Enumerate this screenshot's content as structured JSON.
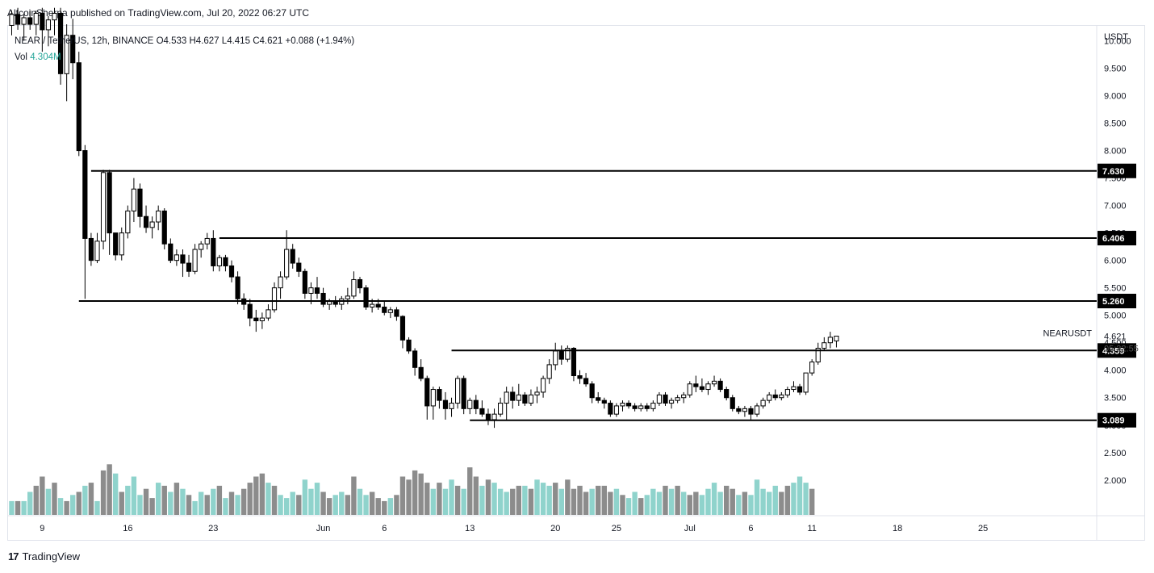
{
  "header": {
    "publish_line": "AltcoinSherpa published on TradingView.com, Jul 20, 2022 06:27 UTC"
  },
  "legend": {
    "symbol": "NEAR / TetherUS, 12h, BINANCE",
    "open": "O4.533",
    "high": "H4.627",
    "low": "L4.415",
    "close": "C4.621",
    "change": "+0.088 (+1.94%)",
    "vol_label": "Vol",
    "vol_value": "4.304M"
  },
  "footer": {
    "brand": "TradingView",
    "logo_text": "17"
  },
  "colors": {
    "up_candle": "#ffffff",
    "down_candle": "#000000",
    "candle_outline": "#000000",
    "vol_up": "#8fd3cc",
    "vol_down": "#8c8c8c",
    "level_line": "#000000",
    "price_label_bg": "#000000"
  },
  "chart_data": {
    "type": "candlestick",
    "symbol": "NEARUSDT",
    "interval": "12h",
    "currency": "USDT",
    "ylim": [
      1.6,
      10.6
    ],
    "y_ticks": [
      10.0,
      9.5,
      9.0,
      8.5,
      8.0,
      7.5,
      7.0,
      6.5,
      6.0,
      5.5,
      5.0,
      4.5,
      4.0,
      3.5,
      3.0,
      2.5,
      2.0
    ],
    "y_tick_labels": [
      "10.000",
      "9.500",
      "9.000",
      "8.500",
      "8.000",
      "7.500",
      "7.000",
      "6.500",
      "6.000",
      "5.500",
      "5.000",
      "4.500",
      "4.000",
      "3.500",
      "3.000",
      "2.500",
      "2.000"
    ],
    "x_ticks": [
      {
        "label": "9",
        "bar": 5
      },
      {
        "label": "16",
        "bar": 19
      },
      {
        "label": "23",
        "bar": 33
      },
      {
        "label": "Jun",
        "bar": 51
      },
      {
        "label": "6",
        "bar": 61
      },
      {
        "label": "13",
        "bar": 75
      },
      {
        "label": "20",
        "bar": 89
      },
      {
        "label": "25",
        "bar": 99
      },
      {
        "label": "Jul",
        "bar": 111
      },
      {
        "label": "6",
        "bar": 121
      },
      {
        "label": "11",
        "bar": 131
      },
      {
        "label": "18",
        "bar": 145
      },
      {
        "label": "25",
        "bar": 159
      }
    ],
    "horizontal_levels": [
      {
        "value": 7.63,
        "label": "7.630",
        "from_bar": 13
      },
      {
        "value": 6.406,
        "label": "6.406",
        "from_bar": 34
      },
      {
        "value": 5.26,
        "label": "5.260",
        "from_bar": 11
      },
      {
        "value": 4.359,
        "label": "4.359",
        "from_bar": 72
      },
      {
        "value": 3.089,
        "label": "3.089",
        "from_bar": 75
      }
    ],
    "last_price": {
      "value": 4.621,
      "label": "4.621",
      "countdown": "05:32:55",
      "series_name": "NEARUSDT"
    },
    "candles": [
      [
        10.28,
        10.55,
        10.1,
        10.48
      ],
      [
        10.48,
        10.6,
        10.2,
        10.3
      ],
      [
        10.3,
        10.5,
        10.0,
        10.42
      ],
      [
        10.42,
        10.55,
        10.2,
        10.3
      ],
      [
        10.3,
        10.55,
        10.1,
        10.5
      ],
      [
        10.5,
        10.6,
        9.8,
        10.2
      ],
      [
        10.2,
        10.45,
        9.9,
        10.38
      ],
      [
        10.38,
        10.6,
        10.1,
        10.5
      ],
      [
        10.5,
        10.6,
        9.2,
        9.4
      ],
      [
        9.4,
        10.3,
        8.9,
        10.1
      ],
      [
        10.1,
        10.4,
        9.3,
        9.6
      ],
      [
        9.6,
        9.8,
        7.9,
        8.0
      ],
      [
        8.0,
        8.1,
        5.3,
        6.4
      ],
      [
        6.4,
        6.5,
        5.9,
        6.0
      ],
      [
        6.0,
        6.5,
        5.95,
        6.35
      ],
      [
        6.35,
        7.65,
        6.2,
        7.6
      ],
      [
        7.6,
        7.65,
        6.1,
        6.5
      ],
      [
        6.5,
        6.5,
        6.0,
        6.1
      ],
      [
        6.1,
        6.6,
        6.0,
        6.5
      ],
      [
        6.5,
        7.0,
        6.4,
        6.9
      ],
      [
        6.9,
        7.5,
        6.7,
        7.3
      ],
      [
        7.3,
        7.4,
        6.6,
        6.8
      ],
      [
        6.8,
        7.0,
        6.5,
        6.6
      ],
      [
        6.6,
        6.8,
        6.4,
        6.7
      ],
      [
        6.7,
        7.0,
        6.55,
        6.9
      ],
      [
        6.9,
        6.95,
        6.2,
        6.3
      ],
      [
        6.3,
        6.4,
        5.95,
        6.0
      ],
      [
        6.0,
        6.2,
        5.9,
        6.1
      ],
      [
        6.1,
        6.2,
        5.7,
        5.95
      ],
      [
        5.95,
        6.1,
        5.7,
        5.8
      ],
      [
        5.8,
        6.3,
        5.75,
        6.2
      ],
      [
        6.2,
        6.35,
        6.05,
        6.3
      ],
      [
        6.3,
        6.5,
        6.2,
        6.4
      ],
      [
        6.4,
        6.55,
        5.8,
        5.9
      ],
      [
        5.9,
        6.1,
        5.8,
        6.05
      ],
      [
        6.05,
        6.1,
        5.8,
        5.9
      ],
      [
        5.9,
        6.0,
        5.6,
        5.7
      ],
      [
        5.7,
        5.8,
        5.2,
        5.3
      ],
      [
        5.3,
        5.4,
        5.1,
        5.2
      ],
      [
        5.2,
        5.3,
        4.8,
        4.95
      ],
      [
        4.95,
        5.1,
        4.7,
        4.9
      ],
      [
        4.9,
        5.05,
        4.75,
        4.95
      ],
      [
        4.95,
        5.2,
        4.9,
        5.1
      ],
      [
        5.1,
        5.6,
        5.05,
        5.5
      ],
      [
        5.5,
        5.8,
        5.3,
        5.7
      ],
      [
        5.7,
        6.55,
        5.65,
        6.2
      ],
      [
        6.2,
        6.3,
        5.85,
        5.95
      ],
      [
        5.95,
        6.05,
        5.7,
        5.8
      ],
      [
        5.8,
        5.85,
        5.3,
        5.4
      ],
      [
        5.4,
        5.6,
        5.2,
        5.5
      ],
      [
        5.5,
        5.7,
        5.3,
        5.4
      ],
      [
        5.4,
        5.5,
        5.15,
        5.2
      ],
      [
        5.2,
        5.3,
        5.1,
        5.25
      ],
      [
        5.25,
        5.35,
        5.15,
        5.2
      ],
      [
        5.2,
        5.35,
        5.1,
        5.3
      ],
      [
        5.3,
        5.5,
        5.2,
        5.35
      ],
      [
        5.35,
        5.8,
        5.3,
        5.65
      ],
      [
        5.65,
        5.7,
        5.4,
        5.5
      ],
      [
        5.5,
        5.55,
        5.1,
        5.15
      ],
      [
        5.15,
        5.3,
        5.05,
        5.2
      ],
      [
        5.2,
        5.3,
        5.1,
        5.15
      ],
      [
        5.15,
        5.25,
        5.0,
        5.05
      ],
      [
        5.05,
        5.15,
        4.95,
        5.1
      ],
      [
        5.1,
        5.15,
        4.9,
        4.98
      ],
      [
        4.98,
        5.0,
        4.4,
        4.55
      ],
      [
        4.55,
        4.6,
        4.3,
        4.35
      ],
      [
        4.35,
        4.4,
        3.9,
        4.05
      ],
      [
        4.05,
        4.2,
        3.8,
        3.85
      ],
      [
        3.85,
        3.9,
        3.1,
        3.35
      ],
      [
        3.35,
        3.7,
        3.1,
        3.65
      ],
      [
        3.65,
        3.7,
        3.3,
        3.45
      ],
      [
        3.45,
        3.6,
        3.1,
        3.3
      ],
      [
        3.3,
        3.5,
        3.15,
        3.4
      ],
      [
        3.4,
        3.9,
        3.3,
        3.85
      ],
      [
        3.85,
        3.9,
        3.2,
        3.3
      ],
      [
        3.3,
        3.5,
        3.2,
        3.45
      ],
      [
        3.45,
        3.55,
        3.2,
        3.3
      ],
      [
        3.3,
        3.45,
        3.15,
        3.2
      ],
      [
        3.2,
        3.3,
        3.0,
        3.1
      ],
      [
        3.1,
        3.3,
        2.95,
        3.2
      ],
      [
        3.2,
        3.5,
        3.15,
        3.4
      ],
      [
        3.4,
        3.7,
        3.1,
        3.6
      ],
      [
        3.6,
        3.7,
        3.3,
        3.45
      ],
      [
        3.45,
        3.75,
        3.35,
        3.55
      ],
      [
        3.55,
        3.6,
        3.35,
        3.4
      ],
      [
        3.4,
        3.65,
        3.35,
        3.55
      ],
      [
        3.55,
        3.7,
        3.4,
        3.6
      ],
      [
        3.6,
        3.9,
        3.5,
        3.85
      ],
      [
        3.85,
        4.2,
        3.75,
        4.1
      ],
      [
        4.1,
        4.5,
        4.0,
        4.35
      ],
      [
        4.35,
        4.45,
        4.1,
        4.2
      ],
      [
        4.2,
        4.45,
        4.15,
        4.4
      ],
      [
        4.4,
        4.42,
        3.8,
        3.9
      ],
      [
        3.9,
        4.0,
        3.75,
        3.85
      ],
      [
        3.85,
        3.95,
        3.7,
        3.75
      ],
      [
        3.75,
        3.8,
        3.4,
        3.5
      ],
      [
        3.5,
        3.6,
        3.4,
        3.45
      ],
      [
        3.45,
        3.5,
        3.3,
        3.4
      ],
      [
        3.4,
        3.45,
        3.15,
        3.2
      ],
      [
        3.2,
        3.4,
        3.15,
        3.35
      ],
      [
        3.35,
        3.45,
        3.25,
        3.4
      ],
      [
        3.4,
        3.45,
        3.3,
        3.35
      ],
      [
        3.35,
        3.4,
        3.25,
        3.3
      ],
      [
        3.3,
        3.4,
        3.25,
        3.35
      ],
      [
        3.35,
        3.4,
        3.25,
        3.3
      ],
      [
        3.3,
        3.45,
        3.25,
        3.4
      ],
      [
        3.4,
        3.6,
        3.35,
        3.55
      ],
      [
        3.55,
        3.6,
        3.35,
        3.4
      ],
      [
        3.4,
        3.5,
        3.3,
        3.45
      ],
      [
        3.45,
        3.55,
        3.4,
        3.5
      ],
      [
        3.5,
        3.6,
        3.4,
        3.55
      ],
      [
        3.55,
        3.8,
        3.5,
        3.75
      ],
      [
        3.75,
        3.9,
        3.6,
        3.7
      ],
      [
        3.7,
        3.85,
        3.6,
        3.65
      ],
      [
        3.65,
        3.8,
        3.55,
        3.75
      ],
      [
        3.75,
        3.9,
        3.7,
        3.8
      ],
      [
        3.8,
        3.85,
        3.6,
        3.65
      ],
      [
        3.65,
        3.7,
        3.45,
        3.5
      ],
      [
        3.5,
        3.55,
        3.25,
        3.3
      ],
      [
        3.3,
        3.35,
        3.2,
        3.25
      ],
      [
        3.25,
        3.35,
        3.15,
        3.3
      ],
      [
        3.3,
        3.35,
        3.1,
        3.2
      ],
      [
        3.2,
        3.4,
        3.15,
        3.35
      ],
      [
        3.35,
        3.5,
        3.3,
        3.45
      ],
      [
        3.45,
        3.6,
        3.4,
        3.55
      ],
      [
        3.55,
        3.65,
        3.45,
        3.5
      ],
      [
        3.5,
        3.6,
        3.45,
        3.55
      ],
      [
        3.55,
        3.7,
        3.5,
        3.65
      ],
      [
        3.65,
        3.8,
        3.6,
        3.7
      ],
      [
        3.7,
        3.75,
        3.55,
        3.6
      ],
      [
        3.6,
        3.9,
        3.55,
        3.95
      ],
      [
        3.95,
        4.2,
        3.9,
        4.15
      ],
      [
        4.15,
        4.5,
        4.1,
        4.4
      ],
      [
        4.4,
        4.6,
        4.35,
        4.5
      ],
      [
        4.5,
        4.7,
        4.4,
        4.6
      ],
      [
        4.533,
        4.627,
        4.415,
        4.621
      ]
    ],
    "volumes": [
      [
        2.0,
        1
      ],
      [
        2.0,
        0
      ],
      [
        2.0,
        1
      ],
      [
        2.3,
        1
      ],
      [
        2.5,
        0
      ],
      [
        2.8,
        0
      ],
      [
        2.4,
        1
      ],
      [
        2.6,
        0
      ],
      [
        2.1,
        1
      ],
      [
        2.0,
        0
      ],
      [
        2.2,
        1
      ],
      [
        2.3,
        0
      ],
      [
        2.5,
        1
      ],
      [
        2.6,
        0
      ],
      [
        2.0,
        1
      ],
      [
        3.0,
        0
      ],
      [
        3.2,
        0
      ],
      [
        2.9,
        1
      ],
      [
        2.3,
        0
      ],
      [
        2.5,
        1
      ],
      [
        2.8,
        1
      ],
      [
        2.2,
        1
      ],
      [
        2.4,
        0
      ],
      [
        2.1,
        0
      ],
      [
        2.6,
        1
      ],
      [
        2.5,
        0
      ],
      [
        2.3,
        1
      ],
      [
        2.6,
        0
      ],
      [
        2.4,
        1
      ],
      [
        2.2,
        0
      ],
      [
        2.0,
        1
      ],
      [
        2.3,
        1
      ],
      [
        2.2,
        0
      ],
      [
        2.4,
        1
      ],
      [
        2.5,
        0
      ],
      [
        2.1,
        1
      ],
      [
        2.3,
        0
      ],
      [
        2.2,
        1
      ],
      [
        2.4,
        0
      ],
      [
        2.6,
        0
      ],
      [
        2.8,
        0
      ],
      [
        2.9,
        0
      ],
      [
        2.6,
        1
      ],
      [
        2.5,
        0
      ],
      [
        2.2,
        1
      ],
      [
        2.1,
        1
      ],
      [
        2.3,
        1
      ],
      [
        2.2,
        0
      ],
      [
        2.7,
        1
      ],
      [
        2.4,
        1
      ],
      [
        2.6,
        1
      ],
      [
        2.3,
        0
      ],
      [
        2.1,
        0
      ],
      [
        2.2,
        1
      ],
      [
        2.3,
        1
      ],
      [
        2.2,
        0
      ],
      [
        2.8,
        0
      ],
      [
        2.4,
        1
      ],
      [
        2.2,
        1
      ],
      [
        2.3,
        0
      ],
      [
        2.1,
        0
      ],
      [
        2.0,
        0
      ],
      [
        2.1,
        1
      ],
      [
        2.2,
        0
      ],
      [
        2.8,
        0
      ],
      [
        2.7,
        0
      ],
      [
        3.0,
        0
      ],
      [
        2.9,
        0
      ],
      [
        2.6,
        0
      ],
      [
        2.4,
        1
      ],
      [
        2.6,
        0
      ],
      [
        2.4,
        1
      ],
      [
        2.7,
        1
      ],
      [
        2.5,
        0
      ],
      [
        2.4,
        1
      ],
      [
        3.1,
        0
      ],
      [
        2.8,
        0
      ],
      [
        2.5,
        1
      ],
      [
        2.7,
        0
      ],
      [
        2.6,
        1
      ],
      [
        2.4,
        1
      ],
      [
        2.3,
        1
      ],
      [
        2.4,
        0
      ],
      [
        2.5,
        0
      ],
      [
        2.5,
        1
      ],
      [
        2.4,
        0
      ],
      [
        2.7,
        1
      ],
      [
        2.6,
        1
      ],
      [
        2.5,
        1
      ],
      [
        2.6,
        0
      ],
      [
        2.4,
        1
      ],
      [
        2.7,
        0
      ],
      [
        2.4,
        0
      ],
      [
        2.5,
        0
      ],
      [
        2.3,
        0
      ],
      [
        2.4,
        1
      ],
      [
        2.5,
        0
      ],
      [
        2.5,
        0
      ],
      [
        2.3,
        0
      ],
      [
        2.4,
        1
      ],
      [
        2.2,
        0
      ],
      [
        2.1,
        1
      ],
      [
        2.3,
        1
      ],
      [
        2.1,
        0
      ],
      [
        2.2,
        1
      ],
      [
        2.4,
        1
      ],
      [
        2.3,
        1
      ],
      [
        2.5,
        0
      ],
      [
        2.4,
        1
      ],
      [
        2.5,
        0
      ],
      [
        2.3,
        1
      ],
      [
        2.2,
        0
      ],
      [
        2.3,
        0
      ],
      [
        2.2,
        1
      ],
      [
        2.4,
        1
      ],
      [
        2.6,
        1
      ],
      [
        2.3,
        1
      ],
      [
        2.5,
        0
      ],
      [
        2.4,
        0
      ],
      [
        2.2,
        1
      ],
      [
        2.3,
        0
      ],
      [
        2.2,
        1
      ],
      [
        2.7,
        1
      ],
      [
        2.4,
        1
      ],
      [
        2.3,
        1
      ],
      [
        2.5,
        1
      ],
      [
        2.3,
        0
      ],
      [
        2.5,
        0
      ],
      [
        2.6,
        1
      ],
      [
        2.8,
        1
      ],
      [
        2.6,
        1
      ],
      [
        2.4,
        0
      ]
    ]
  }
}
